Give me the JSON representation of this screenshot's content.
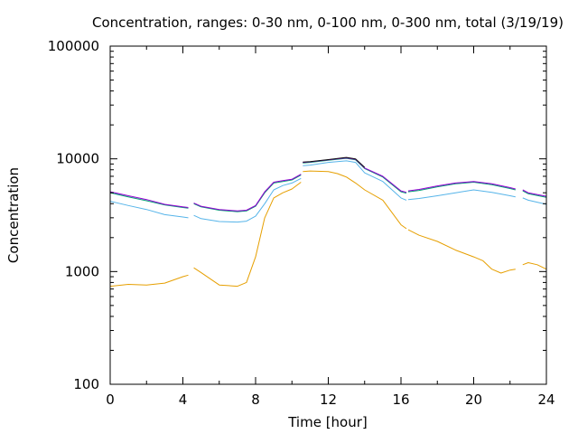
{
  "chart_data": {
    "type": "line",
    "title": "Concentration, ranges: 0-30 nm, 0-100 nm, 0-300 nm, total (3/19/19)",
    "xlabel": "Time [hour]",
    "ylabel": "Concentration",
    "xlim": [
      0,
      24
    ],
    "ylim": [
      100,
      100000
    ],
    "yscale": "log",
    "grid": false,
    "x_ticks": [
      0,
      4,
      8,
      12,
      16,
      20,
      24
    ],
    "x_tick_labels": [
      "0",
      "4",
      "8",
      "12",
      "16",
      "20",
      "24"
    ],
    "y_ticks": [
      100,
      1000,
      10000,
      100000
    ],
    "y_tick_labels": [
      "100",
      "1000",
      "10000",
      "100000"
    ],
    "series": [
      {
        "color": "#e69f00",
        "segments": [
          [
            [
              0,
              740
            ],
            [
              1,
              770
            ],
            [
              2,
              760
            ],
            [
              3,
              790
            ],
            [
              4,
              900
            ],
            [
              4.3,
              930
            ]
          ],
          [
            [
              4.6,
              1080
            ],
            [
              5,
              980
            ],
            [
              6,
              760
            ],
            [
              7,
              740
            ],
            [
              7.5,
              800
            ],
            [
              8,
              1350
            ],
            [
              8.5,
              3000
            ],
            [
              9,
              4500
            ],
            [
              9.5,
              5000
            ],
            [
              10,
              5400
            ],
            [
              10.5,
              6200
            ]
          ],
          [
            [
              10.6,
              7700
            ],
            [
              11,
              7800
            ],
            [
              12,
              7700
            ],
            [
              12.5,
              7400
            ],
            [
              13,
              6900
            ],
            [
              13.5,
              6100
            ],
            [
              14,
              5300
            ],
            [
              15,
              4300
            ],
            [
              16,
              2600
            ],
            [
              16.3,
              2400
            ]
          ],
          [
            [
              16.4,
              2350
            ],
            [
              17,
              2100
            ],
            [
              18,
              1850
            ],
            [
              19,
              1550
            ],
            [
              20,
              1350
            ],
            [
              20.5,
              1250
            ],
            [
              21,
              1050
            ],
            [
              21.5,
              970
            ],
            [
              22,
              1030
            ],
            [
              22.3,
              1050
            ]
          ],
          [
            [
              22.7,
              1150
            ],
            [
              23,
              1200
            ],
            [
              23.5,
              1150
            ],
            [
              24,
              1050
            ]
          ]
        ]
      },
      {
        "color": "#56b4e9",
        "segments": [
          [
            [
              0,
              4200
            ],
            [
              1,
              3850
            ],
            [
              2,
              3550
            ],
            [
              3,
              3200
            ],
            [
              4,
              3050
            ],
            [
              4.3,
              3000
            ]
          ],
          [
            [
              4.6,
              3150
            ],
            [
              5,
              2950
            ],
            [
              6,
              2780
            ],
            [
              7,
              2750
            ],
            [
              7.5,
              2800
            ],
            [
              8,
              3100
            ],
            [
              8.5,
              4000
            ],
            [
              9,
              5300
            ],
            [
              9.5,
              5800
            ],
            [
              10,
              6100
            ],
            [
              10.5,
              6700
            ]
          ],
          [
            [
              10.6,
              8700
            ],
            [
              11,
              8800
            ],
            [
              12,
              9300
            ],
            [
              13,
              9600
            ],
            [
              13.5,
              9300
            ],
            [
              14,
              7500
            ],
            [
              15,
              6300
            ],
            [
              16,
              4500
            ],
            [
              16.3,
              4300
            ]
          ],
          [
            [
              16.4,
              4350
            ],
            [
              17,
              4450
            ],
            [
              18,
              4700
            ],
            [
              19,
              5000
            ],
            [
              20,
              5300
            ],
            [
              21,
              5050
            ],
            [
              22,
              4700
            ],
            [
              22.3,
              4600
            ]
          ],
          [
            [
              22.7,
              4500
            ],
            [
              23,
              4300
            ],
            [
              24,
              3950
            ]
          ]
        ]
      },
      {
        "color": "#009e73",
        "segments": [
          [
            [
              0,
              5000
            ],
            [
              1,
              4600
            ],
            [
              2,
              4250
            ],
            [
              3,
              3900
            ],
            [
              4,
              3700
            ],
            [
              4.3,
              3650
            ]
          ],
          [
            [
              4.6,
              4000
            ],
            [
              5,
              3750
            ],
            [
              6,
              3500
            ],
            [
              7,
              3400
            ],
            [
              7.5,
              3450
            ],
            [
              8,
              3800
            ],
            [
              8.5,
              5000
            ],
            [
              9,
              6100
            ],
            [
              9.5,
              6300
            ],
            [
              10,
              6500
            ],
            [
              10.5,
              7200
            ]
          ],
          [
            [
              10.6,
              9200
            ],
            [
              11,
              9300
            ],
            [
              12,
              9700
            ],
            [
              13,
              10100
            ],
            [
              13.5,
              9800
            ],
            [
              14,
              8200
            ],
            [
              15,
              6900
            ],
            [
              16,
              5100
            ],
            [
              16.3,
              4950
            ]
          ],
          [
            [
              16.4,
              5100
            ],
            [
              17,
              5250
            ],
            [
              18,
              5650
            ],
            [
              19,
              6000
            ],
            [
              20,
              6200
            ],
            [
              21,
              5900
            ],
            [
              22,
              5450
            ],
            [
              22.3,
              5300
            ]
          ],
          [
            [
              22.7,
              5200
            ],
            [
              23,
              4900
            ],
            [
              24,
              4550
            ]
          ]
        ]
      },
      {
        "color": "#9400d3",
        "segments": [
          [
            [
              0,
              5100
            ],
            [
              1,
              4700
            ],
            [
              2,
              4350
            ],
            [
              3,
              3950
            ],
            [
              4,
              3750
            ],
            [
              4.3,
              3700
            ]
          ],
          [
            [
              4.6,
              4050
            ],
            [
              5,
              3800
            ],
            [
              6,
              3550
            ],
            [
              7,
              3450
            ],
            [
              7.5,
              3500
            ],
            [
              8,
              3850
            ],
            [
              8.5,
              5100
            ],
            [
              9,
              6200
            ],
            [
              9.5,
              6400
            ],
            [
              10,
              6600
            ],
            [
              10.5,
              7300
            ]
          ],
          [
            [
              10.6,
              9300
            ],
            [
              11,
              9400
            ],
            [
              12,
              9800
            ],
            [
              13,
              10200
            ],
            [
              13.5,
              9900
            ],
            [
              14,
              8300
            ],
            [
              15,
              7000
            ],
            [
              16,
              5200
            ],
            [
              16.3,
              5050
            ]
          ],
          [
            [
              16.4,
              5200
            ],
            [
              17,
              5350
            ],
            [
              18,
              5750
            ],
            [
              19,
              6100
            ],
            [
              20,
              6300
            ],
            [
              21,
              6000
            ],
            [
              22,
              5550
            ],
            [
              22.3,
              5400
            ]
          ],
          [
            [
              22.7,
              5300
            ],
            [
              23,
              5000
            ],
            [
              24,
              4650
            ]
          ]
        ]
      },
      {
        "color": "#111111",
        "segments": [
          [
            [
              10.6,
              9350
            ],
            [
              11,
              9450
            ],
            [
              12,
              9850
            ],
            [
              13,
              10300
            ],
            [
              13.5,
              10000
            ],
            [
              14,
              8400
            ]
          ]
        ]
      }
    ]
  }
}
